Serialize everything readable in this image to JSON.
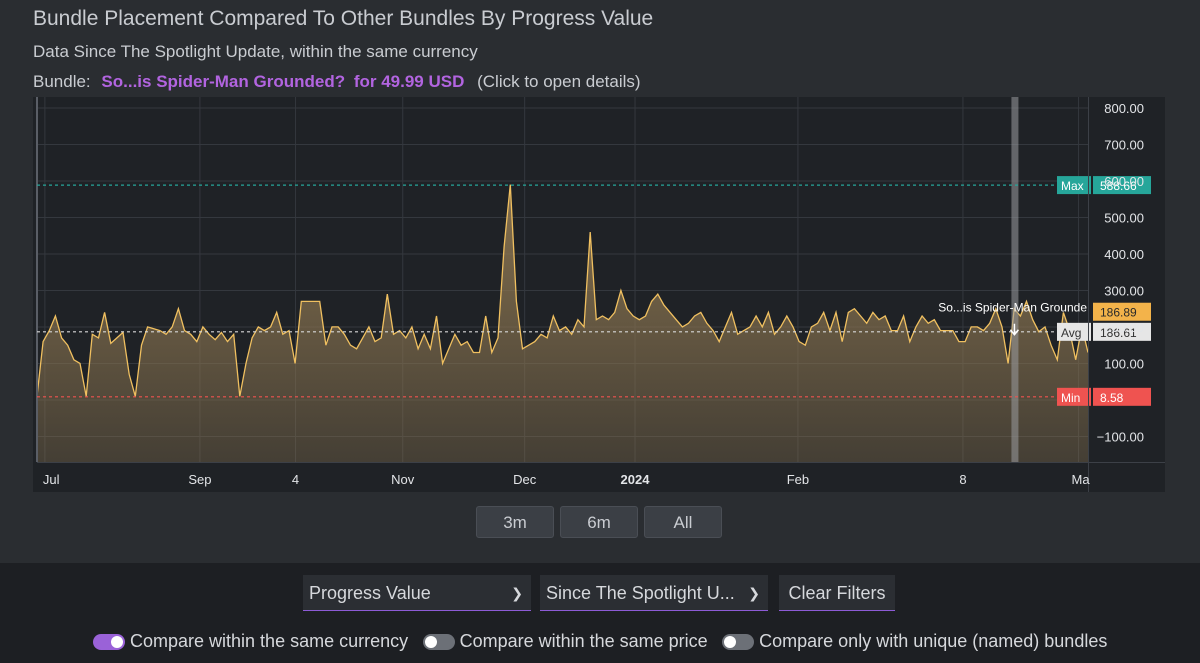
{
  "header": {
    "title": "Bundle Placement Compared To Other Bundles By Progress Value",
    "subtitle": "Data Since The Spotlight Update, within the same currency",
    "bundle_prefix": "Bundle:",
    "bundle_name": "So...is Spider-Man Grounded?",
    "bundle_price": "for 49.99 USD",
    "bundle_hint": "(Click to open details)"
  },
  "colors": {
    "line": "#f0c060",
    "area": "#8a7450",
    "max": "#26a69a",
    "min": "#ef5350",
    "current_label": "#f3b34a",
    "avg_label": "#d8d8d8"
  },
  "chart_data": {
    "type": "area",
    "x_tick_labels": [
      "Jul",
      "Sep",
      "4",
      "Nov",
      "Dec",
      "2024",
      "Feb",
      "8",
      "Ma"
    ],
    "y_tick_labels": [
      "800.00",
      "700.00",
      "600.00",
      "500.00",
      "400.00",
      "300.00",
      "200.00",
      "100.00",
      "−100.00"
    ],
    "ylim": [
      -170,
      830
    ],
    "grid": true,
    "reference_lines": [
      {
        "label": "Max",
        "value": 588.66,
        "value_text": "588.66",
        "color": "#26a69a"
      },
      {
        "label": "Min",
        "value": 8.58,
        "value_text": "8.58",
        "color": "#ef5350"
      },
      {
        "label": "Avg",
        "value": 186.61,
        "value_text": "186.61",
        "color": "#d8d8d8"
      }
    ],
    "current": {
      "label": "So...is Spider-Man Grounde",
      "value": 186.89,
      "value_text": "186.89"
    },
    "values": [
      10,
      160,
      190,
      230,
      170,
      150,
      110,
      100,
      10,
      180,
      170,
      240,
      155,
      170,
      185,
      70,
      10,
      150,
      200,
      195,
      190,
      180,
      200,
      250,
      190,
      180,
      160,
      200,
      180,
      165,
      185,
      160,
      180,
      10,
      100,
      170,
      200,
      190,
      200,
      240,
      180,
      190,
      100,
      270,
      270,
      270,
      270,
      150,
      200,
      200,
      180,
      150,
      140,
      170,
      200,
      160,
      170,
      290,
      180,
      190,
      170,
      200,
      140,
      180,
      140,
      230,
      100,
      140,
      180,
      150,
      160,
      130,
      130,
      230,
      130,
      170,
      420,
      590,
      270,
      140,
      150,
      160,
      180,
      170,
      230,
      190,
      200,
      180,
      220,
      200,
      460,
      220,
      230,
      220,
      240,
      300,
      250,
      230,
      220,
      230,
      270,
      290,
      260,
      240,
      220,
      200,
      210,
      230,
      240,
      210,
      190,
      160,
      200,
      240,
      180,
      190,
      200,
      230,
      200,
      240,
      180,
      200,
      230,
      200,
      160,
      150,
      200,
      210,
      240,
      190,
      240,
      160,
      240,
      250,
      230,
      210,
      240,
      220,
      230,
      190,
      190,
      230,
      160,
      200,
      230,
      210,
      220,
      190,
      190,
      190,
      160,
      160,
      200,
      200,
      190,
      210,
      250,
      200,
      100,
      250,
      230,
      270,
      220,
      187,
      200,
      150,
      110,
      240,
      190,
      110,
      200,
      130
    ]
  },
  "range_buttons": [
    "3m",
    "6m",
    "All"
  ],
  "filters": {
    "metric": "Progress Value",
    "period": "Since The Spotlight U...",
    "clear_label": "Clear Filters"
  },
  "toggles": [
    {
      "label": "Compare within the same currency",
      "on": true
    },
    {
      "label": "Compare within the same price",
      "on": false
    },
    {
      "label": "Compare only with unique (named) bundles",
      "on": false
    }
  ]
}
